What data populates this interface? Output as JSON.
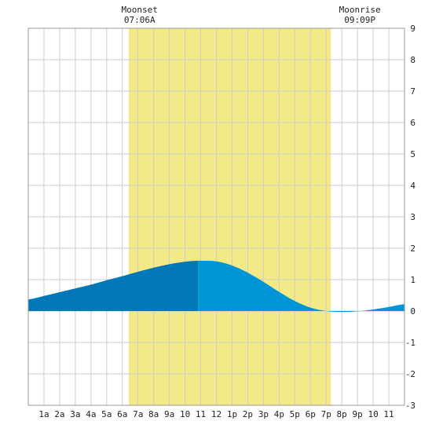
{
  "chart_data": {
    "type": "area",
    "title": "",
    "xlabel": "",
    "ylabel": "",
    "x_unit": "hour",
    "xlim": [
      0,
      24
    ],
    "ylim": [
      -3,
      9
    ],
    "yticks": [
      -3,
      -2,
      -1,
      0,
      1,
      2,
      3,
      4,
      5,
      6,
      7,
      8,
      9
    ],
    "xtick_labels": [
      "1a",
      "2a",
      "3a",
      "4a",
      "5a",
      "6a",
      "7a",
      "8a",
      "9a",
      "10",
      "11",
      "12",
      "1p",
      "2p",
      "3p",
      "4p",
      "5p",
      "6p",
      "7p",
      "8p",
      "9p",
      "10",
      "11"
    ],
    "grid": true,
    "daylight": {
      "start": 6.4,
      "end": 19.3
    },
    "moon_events": [
      {
        "name": "Moonset",
        "time": "07:06A",
        "hour": 7.1
      },
      {
        "name": "Moonrise",
        "time": "09:09P",
        "hour": 21.15
      }
    ],
    "series": [
      {
        "x": [
          0,
          1,
          2,
          3,
          4,
          5,
          6,
          7,
          8,
          9,
          10,
          10.83,
          11,
          12,
          13,
          14,
          15,
          16,
          17,
          18,
          19,
          20,
          21,
          22,
          23,
          24
        ],
        "values": [
          0.37,
          0.48,
          0.6,
          0.72,
          0.84,
          0.98,
          1.11,
          1.25,
          1.38,
          1.49,
          1.57,
          1.6,
          1.6,
          1.58,
          1.45,
          1.22,
          0.93,
          0.61,
          0.32,
          0.11,
          0.0,
          -0.03,
          -0.01,
          0.05,
          0.13,
          0.22
        ]
      }
    ],
    "split_hour": 10.83
  },
  "colors": {
    "background": "#ffffff",
    "daylight": "#f3ea87",
    "grid": "#cccccc",
    "area_dark": "#0077b6",
    "area_light": "#0095d6",
    "text": "#222222"
  }
}
